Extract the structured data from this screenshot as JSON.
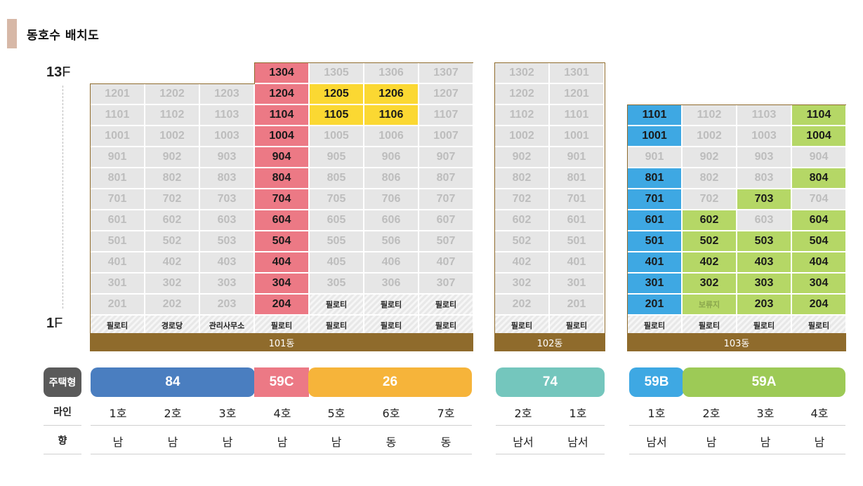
{
  "title": "동호수 배치도",
  "floor_top": {
    "num": "13",
    "unit": "F"
  },
  "floor_bottom": {
    "num": "1",
    "unit": "F"
  },
  "buildings": [
    {
      "name": "101동",
      "rows": [
        [
          null,
          null,
          null,
          {
            "t": "1304",
            "c": "pink"
          },
          {
            "t": "1305"
          },
          {
            "t": "1306"
          },
          {
            "t": "1307"
          }
        ],
        [
          {
            "t": "1201"
          },
          {
            "t": "1202"
          },
          {
            "t": "1203"
          },
          {
            "t": "1204",
            "c": "pink"
          },
          {
            "t": "1205",
            "c": "yellow"
          },
          {
            "t": "1206",
            "c": "yellow"
          },
          {
            "t": "1207"
          }
        ],
        [
          {
            "t": "1101"
          },
          {
            "t": "1102"
          },
          {
            "t": "1103"
          },
          {
            "t": "1104",
            "c": "pink"
          },
          {
            "t": "1105",
            "c": "yellow"
          },
          {
            "t": "1106",
            "c": "yellow"
          },
          {
            "t": "1107"
          }
        ],
        [
          {
            "t": "1001"
          },
          {
            "t": "1002"
          },
          {
            "t": "1003"
          },
          {
            "t": "1004",
            "c": "pink"
          },
          {
            "t": "1005"
          },
          {
            "t": "1006"
          },
          {
            "t": "1007"
          }
        ],
        [
          {
            "t": "901"
          },
          {
            "t": "902"
          },
          {
            "t": "903"
          },
          {
            "t": "904",
            "c": "pink"
          },
          {
            "t": "905"
          },
          {
            "t": "906"
          },
          {
            "t": "907"
          }
        ],
        [
          {
            "t": "801"
          },
          {
            "t": "802"
          },
          {
            "t": "803"
          },
          {
            "t": "804",
            "c": "pink"
          },
          {
            "t": "805"
          },
          {
            "t": "806"
          },
          {
            "t": "807"
          }
        ],
        [
          {
            "t": "701"
          },
          {
            "t": "702"
          },
          {
            "t": "703"
          },
          {
            "t": "704",
            "c": "pink"
          },
          {
            "t": "705"
          },
          {
            "t": "706"
          },
          {
            "t": "707"
          }
        ],
        [
          {
            "t": "601"
          },
          {
            "t": "602"
          },
          {
            "t": "603"
          },
          {
            "t": "604",
            "c": "pink"
          },
          {
            "t": "605"
          },
          {
            "t": "606"
          },
          {
            "t": "607"
          }
        ],
        [
          {
            "t": "501"
          },
          {
            "t": "502"
          },
          {
            "t": "503"
          },
          {
            "t": "504",
            "c": "pink"
          },
          {
            "t": "505"
          },
          {
            "t": "506"
          },
          {
            "t": "507"
          }
        ],
        [
          {
            "t": "401"
          },
          {
            "t": "402"
          },
          {
            "t": "403"
          },
          {
            "t": "404",
            "c": "pink"
          },
          {
            "t": "405"
          },
          {
            "t": "406"
          },
          {
            "t": "407"
          }
        ],
        [
          {
            "t": "301"
          },
          {
            "t": "302"
          },
          {
            "t": "303"
          },
          {
            "t": "304",
            "c": "pink"
          },
          {
            "t": "305"
          },
          {
            "t": "306"
          },
          {
            "t": "307"
          }
        ],
        [
          {
            "t": "201"
          },
          {
            "t": "202"
          },
          {
            "t": "203"
          },
          {
            "t": "204",
            "c": "pink"
          },
          {
            "t": "필로티",
            "c": "pilotis"
          },
          {
            "t": "필로티",
            "c": "pilotis"
          },
          {
            "t": "필로티",
            "c": "pilotis"
          }
        ],
        [
          {
            "t": "필로티",
            "c": "pilotis"
          },
          {
            "t": "경로당",
            "c": "pilotis"
          },
          {
            "t": "관리사무소",
            "c": "pilotis"
          },
          {
            "t": "필로티",
            "c": "pilotis"
          },
          {
            "t": "필로티",
            "c": "pilotis"
          },
          {
            "t": "필로티",
            "c": "pilotis"
          },
          {
            "t": "필로티",
            "c": "pilotis"
          }
        ]
      ]
    },
    {
      "name": "102동",
      "rows": [
        [
          {
            "t": "1302"
          },
          {
            "t": "1301"
          }
        ],
        [
          {
            "t": "1202"
          },
          {
            "t": "1201"
          }
        ],
        [
          {
            "t": "1102"
          },
          {
            "t": "1101"
          }
        ],
        [
          {
            "t": "1002"
          },
          {
            "t": "1001"
          }
        ],
        [
          {
            "t": "902"
          },
          {
            "t": "901"
          }
        ],
        [
          {
            "t": "802"
          },
          {
            "t": "801"
          }
        ],
        [
          {
            "t": "702"
          },
          {
            "t": "701"
          }
        ],
        [
          {
            "t": "602"
          },
          {
            "t": "601"
          }
        ],
        [
          {
            "t": "502"
          },
          {
            "t": "501"
          }
        ],
        [
          {
            "t": "402"
          },
          {
            "t": "401"
          }
        ],
        [
          {
            "t": "302"
          },
          {
            "t": "301"
          }
        ],
        [
          {
            "t": "202"
          },
          {
            "t": "201"
          }
        ],
        [
          {
            "t": "필로티",
            "c": "pilotis"
          },
          {
            "t": "필로티",
            "c": "pilotis"
          }
        ]
      ]
    },
    {
      "name": "103동",
      "rows": [
        [
          {
            "t": "1101",
            "c": "blue"
          },
          {
            "t": "1102"
          },
          {
            "t": "1103"
          },
          {
            "t": "1104",
            "c": "green"
          }
        ],
        [
          {
            "t": "1001",
            "c": "blue"
          },
          {
            "t": "1002"
          },
          {
            "t": "1003"
          },
          {
            "t": "1004",
            "c": "green"
          }
        ],
        [
          {
            "t": "901"
          },
          {
            "t": "902"
          },
          {
            "t": "903"
          },
          {
            "t": "904"
          }
        ],
        [
          {
            "t": "801",
            "c": "blue"
          },
          {
            "t": "802"
          },
          {
            "t": "803"
          },
          {
            "t": "804",
            "c": "green"
          }
        ],
        [
          {
            "t": "701",
            "c": "blue"
          },
          {
            "t": "702"
          },
          {
            "t": "703",
            "c": "green"
          },
          {
            "t": "704"
          }
        ],
        [
          {
            "t": "601",
            "c": "blue"
          },
          {
            "t": "602",
            "c": "green"
          },
          {
            "t": "603"
          },
          {
            "t": "604",
            "c": "green"
          }
        ],
        [
          {
            "t": "501",
            "c": "blue"
          },
          {
            "t": "502",
            "c": "green"
          },
          {
            "t": "503",
            "c": "green"
          },
          {
            "t": "504",
            "c": "green"
          }
        ],
        [
          {
            "t": "401",
            "c": "blue"
          },
          {
            "t": "402",
            "c": "green"
          },
          {
            "t": "403",
            "c": "green"
          },
          {
            "t": "404",
            "c": "green"
          }
        ],
        [
          {
            "t": "301",
            "c": "blue"
          },
          {
            "t": "302",
            "c": "green"
          },
          {
            "t": "303",
            "c": "green"
          },
          {
            "t": "304",
            "c": "green"
          }
        ],
        [
          {
            "t": "201",
            "c": "blue"
          },
          {
            "t": "보류지",
            "c": "green-dim"
          },
          {
            "t": "203",
            "c": "green"
          },
          {
            "t": "204",
            "c": "green"
          }
        ],
        [
          {
            "t": "필로티",
            "c": "pilotis"
          },
          {
            "t": "필로티",
            "c": "pilotis"
          },
          {
            "t": "필로티",
            "c": "pilotis"
          },
          {
            "t": "필로티",
            "c": "pilotis"
          }
        ]
      ]
    }
  ],
  "legend": {
    "type_label": "주택형",
    "line_label": "라인",
    "direction_label": "향",
    "types": [
      {
        "label": "84",
        "color": "#4a7ec0"
      },
      {
        "label": "59C",
        "color": "#ec7985"
      },
      {
        "label": "26",
        "color": "#f6b43a"
      },
      {
        "label": "74",
        "color": "#74c6bd"
      },
      {
        "label": "59B",
        "color": "#3ea8e3"
      },
      {
        "label": "59A",
        "color": "#9dca56"
      }
    ],
    "lines": [
      "1호",
      "2호",
      "3호",
      "4호",
      "5호",
      "6호",
      "7호",
      "2호",
      "1호",
      "1호",
      "2호",
      "3호",
      "4호"
    ],
    "directions": [
      "남",
      "남",
      "남",
      "남",
      "남",
      "동",
      "동",
      "남서",
      "남서",
      "남서",
      "남",
      "남",
      "남"
    ]
  },
  "colors": {
    "frame": "#8f6b2c",
    "pink": "#ec7985",
    "yellow": "#fbd832",
    "blue": "#3ea8e3",
    "green": "#b5d766",
    "gray": "#e6e6e6"
  }
}
